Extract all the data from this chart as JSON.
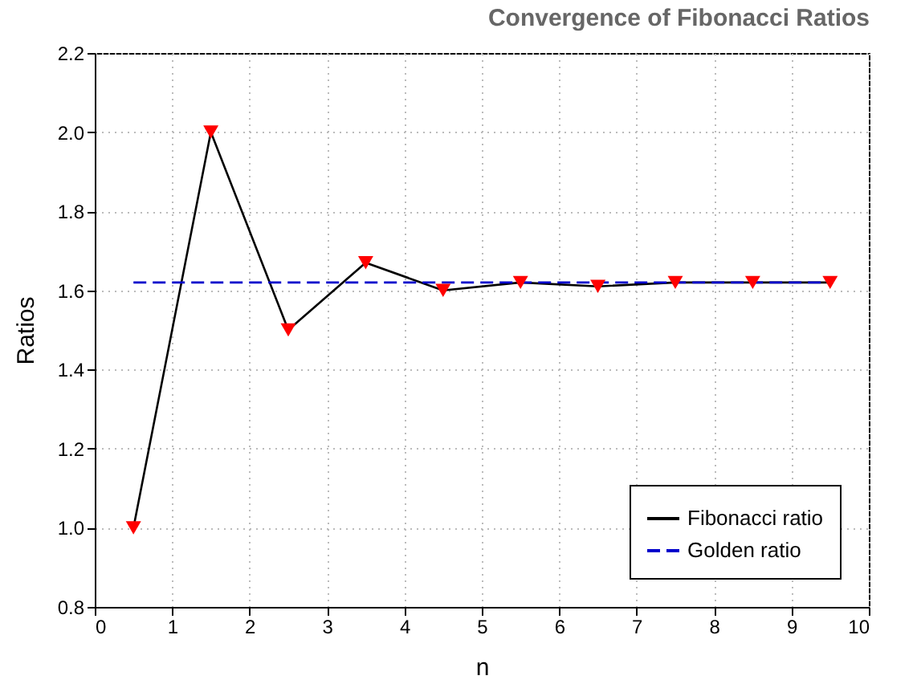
{
  "chart_data": {
    "type": "line",
    "title": "Convergence of Fibonacci Ratios",
    "xlabel": "n",
    "ylabel": "Ratios",
    "xlim": [
      0,
      10
    ],
    "xticks": [
      0,
      1,
      2,
      3,
      4,
      5,
      6,
      7,
      8,
      9,
      10
    ],
    "ylim": [
      0.8,
      2.2
    ],
    "yticks": [
      0.8,
      {
        "value": 1,
        "label": "1.0"
      },
      1.2,
      1.4,
      1.6,
      1.8,
      {
        "value": 2,
        "label": "2.0"
      },
      2.2
    ],
    "grid": true,
    "legend": "bottom right",
    "marker": "triangle",
    "series": [
      {
        "name": "Fibonacci ratio",
        "color": "#000000",
        "line_style": "solid",
        "x": [
          0.5,
          1.5,
          2.5,
          3.5,
          4.5,
          5.5,
          6.5,
          7.5,
          8.5,
          9.5
        ],
        "values": [
          1.0,
          2.0,
          1.5,
          1.67,
          1.6,
          1.62,
          1.61,
          1.62,
          1.62,
          1.62
        ],
        "colors": [
          "#ff0000",
          "#ff0000",
          "#ff0000",
          "#ff0000",
          "#ff0000",
          "#ff0000",
          "#ff0000",
          "#ff0000",
          "#ff0000",
          "#ff0000"
        ]
      },
      {
        "name": "Golden ratio",
        "color": "#0000cc",
        "x": [
          0.5,
          9.5
        ],
        "values": [
          1.62,
          1.62
        ],
        "line_style": "dashed",
        "marker": "none"
      }
    ]
  }
}
